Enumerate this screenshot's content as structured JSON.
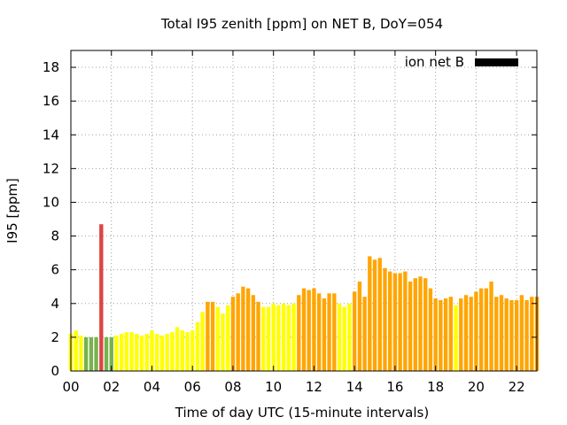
{
  "chart_data": {
    "type": "bar",
    "title": "Total I95 zenith [ppm] on NET B, DoY=054",
    "xlabel": "Time of day UTC (15-minute intervals)",
    "ylabel": "I95 [ppm]",
    "xlim": [
      0,
      23
    ],
    "ylim": [
      0,
      19
    ],
    "x_ticks": [
      0,
      2,
      4,
      6,
      8,
      10,
      12,
      14,
      16,
      18,
      20,
      22
    ],
    "x_tick_labels": [
      "00",
      "02",
      "04",
      "06",
      "08",
      "10",
      "12",
      "14",
      "16",
      "18",
      "20",
      "22"
    ],
    "y_ticks": [
      0,
      2,
      4,
      6,
      8,
      10,
      12,
      14,
      16,
      18
    ],
    "grid": true,
    "legend": {
      "label": "ion net B",
      "position": "top-right",
      "color": "#000000"
    },
    "interval_hours": 0.25,
    "bar_width_hours": 0.19,
    "color_thresholds": [
      {
        "max": 2.0,
        "color": "#77b24c"
      },
      {
        "max": 4.0,
        "color": "#ffff00"
      },
      {
        "max": 8.0,
        "color": "#ffa500"
      },
      {
        "max": 99,
        "color": "#dd4444"
      }
    ],
    "values": [
      2.2,
      2.4,
      2.1,
      2.0,
      2.0,
      2.0,
      8.7,
      2.0,
      2.0,
      2.1,
      2.2,
      2.3,
      2.3,
      2.2,
      2.1,
      2.2,
      2.4,
      2.2,
      2.1,
      2.2,
      2.3,
      2.6,
      2.4,
      2.3,
      2.4,
      2.9,
      3.5,
      4.1,
      4.1,
      3.8,
      3.4,
      3.9,
      4.4,
      4.6,
      5.0,
      4.9,
      4.5,
      4.1,
      3.8,
      3.8,
      4.0,
      3.9,
      4.0,
      3.9,
      4.0,
      4.5,
      4.9,
      4.8,
      4.9,
      4.6,
      4.3,
      4.6,
      4.6,
      4.0,
      3.8,
      4.0,
      4.7,
      5.3,
      4.4,
      6.8,
      6.6,
      6.7,
      6.1,
      5.9,
      5.8,
      5.8,
      5.9,
      5.3,
      5.5,
      5.6,
      5.5,
      4.9,
      4.3,
      4.2,
      4.3,
      4.4,
      3.9,
      4.3,
      4.5,
      4.4,
      4.7,
      4.9,
      4.9,
      5.3,
      4.4,
      4.5,
      4.3,
      4.2,
      4.2,
      4.5,
      4.2,
      4.4,
      4.4
    ]
  }
}
